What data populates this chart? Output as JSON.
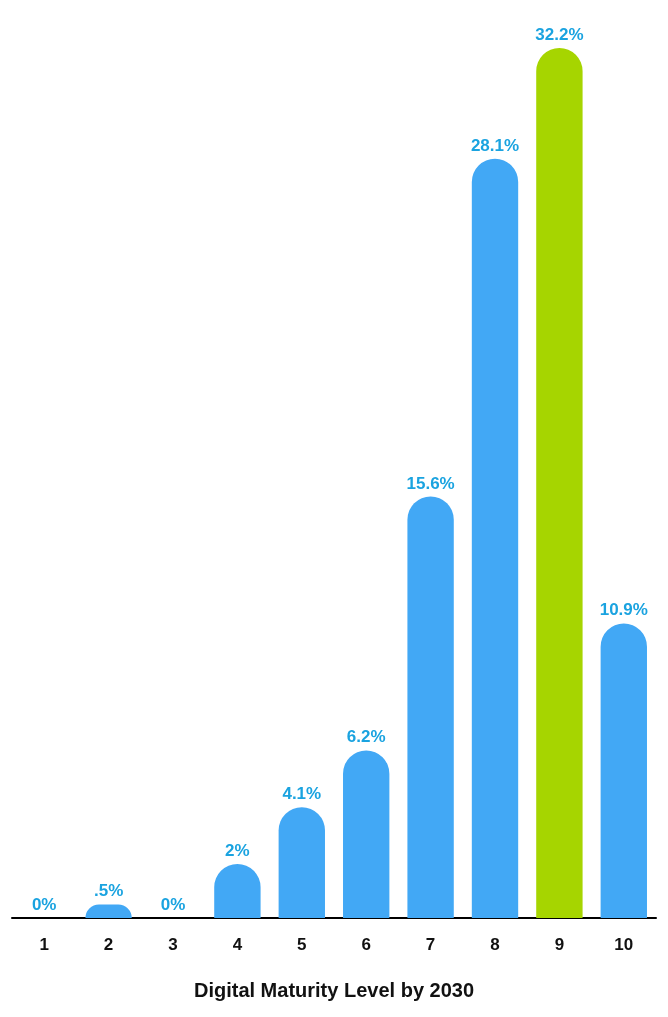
{
  "chart_data": {
    "type": "bar",
    "xlabel": "Digital Maturity Level by 2030",
    "categories": [
      "1",
      "2",
      "3",
      "4",
      "5",
      "6",
      "7",
      "8",
      "9",
      "10"
    ],
    "values": [
      0,
      0.5,
      0,
      2,
      4.1,
      6.2,
      15.6,
      28.1,
      32.2,
      10.9
    ],
    "colors": [
      "#42a8f5",
      "#42a8f5",
      "#42a8f5",
      "#42a8f5",
      "#42a8f5",
      "#42a8f5",
      "#42a8f5",
      "#42a8f5",
      "#a6d500",
      "#42a8f5"
    ],
    "value_labels": [
      "0%",
      ".5%",
      "0%",
      "2%",
      "4.1%",
      "6.2%",
      "15.6%",
      "28.1%",
      "32.2%",
      "10.9%"
    ],
    "grid": false
  }
}
